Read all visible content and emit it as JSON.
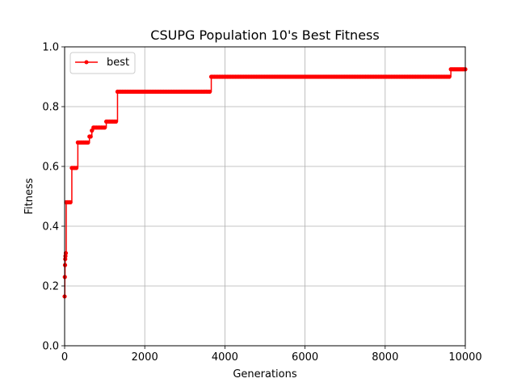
{
  "chart_data": {
    "type": "line",
    "title": "CSUPG Population 10's Best Fitness",
    "xlabel": "Generations",
    "ylabel": "Fitness",
    "xlim": [
      0,
      10000
    ],
    "ylim": [
      0.0,
      1.0
    ],
    "xticks": [
      0,
      2000,
      4000,
      6000,
      8000,
      10000
    ],
    "yticks": [
      0.0,
      0.2,
      0.4,
      0.6,
      0.8,
      1.0
    ],
    "xtick_labels": [
      "0",
      "2000",
      "4000",
      "6000",
      "8000",
      "10000"
    ],
    "ytick_labels": [
      "0.0",
      "0.2",
      "0.4",
      "0.6",
      "0.8",
      "1.0"
    ],
    "grid": true,
    "legend": {
      "placement": "top-left",
      "entries": [
        "best"
      ]
    },
    "series": [
      {
        "name": "best",
        "color": "#ff0000",
        "marker": "circle",
        "steps": [
          [
            0,
            0.165
          ],
          [
            5,
            0.23
          ],
          [
            10,
            0.27
          ],
          [
            15,
            0.29
          ],
          [
            20,
            0.3
          ],
          [
            30,
            0.31
          ],
          [
            40,
            0.48
          ],
          [
            180,
            0.595
          ],
          [
            330,
            0.68
          ],
          [
            620,
            0.7
          ],
          [
            680,
            0.72
          ],
          [
            720,
            0.73
          ],
          [
            1040,
            0.75
          ],
          [
            1320,
            0.85
          ],
          [
            3660,
            0.9
          ],
          [
            9640,
            0.925
          ]
        ],
        "x_end": 10000
      }
    ]
  }
}
